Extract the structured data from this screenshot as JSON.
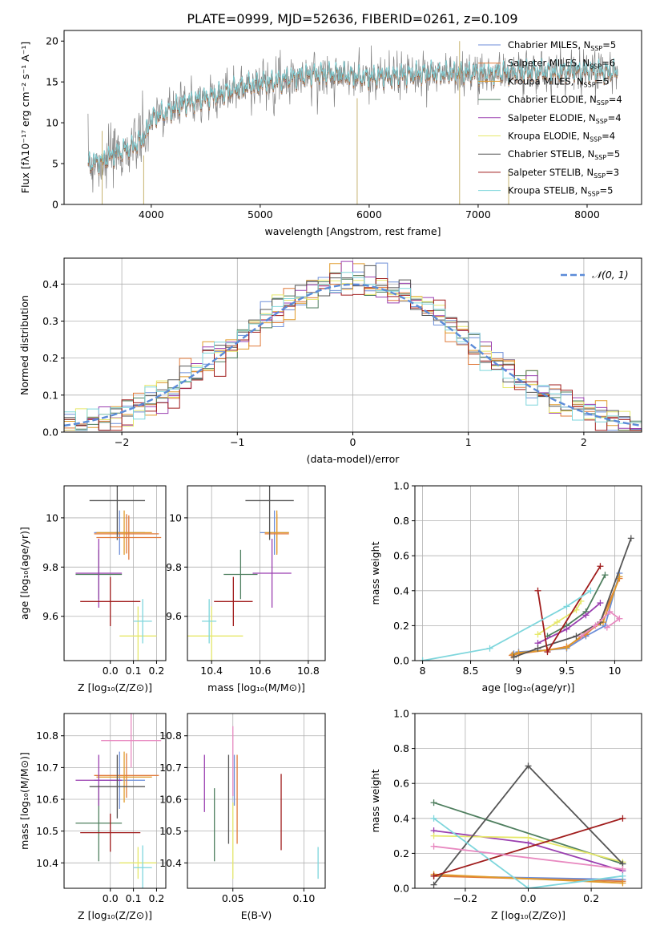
{
  "figure": {
    "title": "PLATE=0999, MJD=52636, FIBERID=0261, z=0.109"
  },
  "colors": {
    "Chabrier MILES": "#6c8ed8",
    "Salpeter MILES": "#e07a3a",
    "Kroupa MILES": "#e09a2a",
    "Chabrier ELODIE": "#4f7f5f",
    "Salpeter ELODIE": "#9a3fb0",
    "Kroupa ELODIE": "#e6e86a",
    "Chabrier STELIB": "#555555",
    "Salpeter STELIB": "#a01c1c",
    "Kroupa STELIB": "#7ed6dc",
    "gaussian": "#5b8bd8",
    "grid": "#b0b0b0"
  },
  "legend1": [
    {
      "name": "Chabrier MILES",
      "label": "Chabrier MILES, N",
      "sub": "SSP",
      "tail": "=5"
    },
    {
      "name": "Salpeter MILES",
      "label": "Salpeter MILES, N",
      "sub": "SSP",
      "tail": "=6"
    },
    {
      "name": "Kroupa MILES",
      "label": "Kroupa MILES, N",
      "sub": "SSP",
      "tail": "=5"
    },
    {
      "name": "Chabrier ELODIE",
      "label": "Chabrier ELODIE, N",
      "sub": "SSP",
      "tail": "=4"
    },
    {
      "name": "Salpeter ELODIE",
      "label": "Salpeter ELODIE, N",
      "sub": "SSP",
      "tail": "=4"
    },
    {
      "name": "Kroupa ELODIE",
      "label": "Kroupa ELODIE, N",
      "sub": "SSP",
      "tail": "=4"
    },
    {
      "name": "Chabrier STELIB",
      "label": "Chabrier STELIB, N",
      "sub": "SSP",
      "tail": "=5"
    },
    {
      "name": "Salpeter STELIB",
      "label": "Salpeter STELIB, N",
      "sub": "SSP",
      "tail": "=3"
    },
    {
      "name": "Kroupa STELIB",
      "label": "Kroupa STELIB, N",
      "sub": "SSP",
      "tail": "=5"
    }
  ],
  "legend2": "𝒩(0, 1)",
  "chart_data": [
    {
      "id": "spectrum",
      "type": "line",
      "title": "PLATE=0999, MJD=52636, FIBERID=0261, z=0.109",
      "xlabel": "wavelength [Angstrom, rest frame]",
      "ylabel": "Flux [fλ10⁻¹⁷ erg cm⁻² s⁻¹ A⁻¹]",
      "xlim": [
        3200,
        8500
      ],
      "ylim": [
        0,
        21.3
      ],
      "xticks": [
        4000,
        5000,
        6000,
        7000,
        8000
      ],
      "yticks": [
        0,
        5,
        10,
        15,
        20
      ],
      "continuum": {
        "x": [
          3420,
          3550,
          3700,
          3850,
          3950,
          4000,
          4150,
          4300,
          4500,
          4700,
          4900,
          5100,
          5300,
          5500,
          5700,
          5900,
          6100,
          6300,
          6500,
          6700,
          6900,
          7100,
          7300,
          7500,
          7700,
          7900,
          8100,
          8280
        ],
        "y": [
          5.0,
          5.3,
          6.3,
          7.2,
          8.4,
          10.5,
          11.3,
          12.3,
          13.0,
          13.8,
          14.6,
          15.0,
          15.5,
          15.9,
          16.0,
          15.5,
          15.6,
          15.8,
          16.0,
          16.0,
          16.1,
          16.0,
          16.1,
          16.2,
          16.2,
          16.3,
          16.3,
          16.1
        ]
      },
      "series": [
        "Chabrier MILES",
        "Salpeter MILES",
        "Kroupa MILES",
        "Chabrier ELODIE",
        "Salpeter ELODIE",
        "Kroupa ELODIE",
        "Chabrier STELIB",
        "Salpeter STELIB",
        "Kroupa STELIB"
      ],
      "grid": false,
      "legend": "top-right"
    },
    {
      "id": "residuals",
      "type": "histogram",
      "xlabel": "(data-model)/error",
      "ylabel": "Normed distribution",
      "xlim": [
        -2.5,
        2.5
      ],
      "ylim": [
        0,
        0.47
      ],
      "xticks": [
        -2,
        -1,
        0,
        1,
        2
      ],
      "yticks": [
        0.0,
        0.1,
        0.2,
        0.3,
        0.4
      ],
      "bin_width": 0.1,
      "gaussian": {
        "mean": 0,
        "sigma": 1,
        "label": "𝒩(0, 1)"
      },
      "series": [
        "Chabrier MILES",
        "Salpeter MILES",
        "Kroupa MILES",
        "Chabrier ELODIE",
        "Salpeter ELODIE",
        "Kroupa ELODIE",
        "Chabrier STELIB",
        "Salpeter STELIB",
        "Kroupa STELIB"
      ],
      "grid": true,
      "legend": "top-right"
    },
    {
      "id": "age_vs_Z",
      "type": "errorbar",
      "xlabel": "Z [log₁₀(Z/Z⊙)]",
      "ylabel": "age  [log₁₀(age/yr)]",
      "xlim": [
        -0.2,
        0.24
      ],
      "ylim": [
        9.42,
        10.13
      ],
      "xticks": [
        0.0,
        0.1,
        0.2
      ],
      "xticklabels": [
        "0.0",
        "0.1",
        "0.2"
      ],
      "yticks": [
        9.6,
        9.8,
        10.0
      ],
      "grid": true,
      "points": [
        {
          "series": "Chabrier MILES",
          "x": 0.04,
          "xerr": 0.11,
          "y": 9.94,
          "yerr": 0.09
        },
        {
          "series": "Salpeter MILES",
          "x": 0.07,
          "xerr": 0.14,
          "y": 9.935,
          "yerr": 0.08
        },
        {
          "series": "Kroupa MILES",
          "x": 0.06,
          "xerr": 0.12,
          "y": 9.94,
          "yerr": 0.09
        },
        {
          "series": "Chabrier ELODIE",
          "x": -0.05,
          "xerr": 0.1,
          "y": 9.77,
          "yerr": 0.1
        },
        {
          "series": "Salpeter ELODIE",
          "x": -0.05,
          "xerr": 0.1,
          "y": 9.775,
          "yerr": 0.14
        },
        {
          "series": "Kroupa ELODIE",
          "x": 0.12,
          "xerr": 0.08,
          "y": 9.52,
          "yerr": 0.12
        },
        {
          "series": "Chabrier STELIB",
          "x": 0.03,
          "xerr": 0.12,
          "y": 10.07,
          "yerr": 0.16
        },
        {
          "series": "Salpeter STELIB",
          "x": 0.0,
          "xerr": 0.13,
          "y": 9.66,
          "yerr": 0.1
        },
        {
          "series": "Kroupa STELIB",
          "x": 0.14,
          "xerr": 0.04,
          "y": 9.58,
          "yerr": 0.09
        },
        {
          "series": "Salpeter MILES",
          "x": 0.08,
          "xerr": 0.14,
          "y": 9.92,
          "yerr": 0.09
        }
      ]
    },
    {
      "id": "age_vs_mass",
      "type": "errorbar",
      "xlabel": "mass [log₁₀(M/M⊙)]",
      "ylabel": "",
      "xlim": [
        10.3,
        10.87
      ],
      "ylim": [
        9.42,
        10.13
      ],
      "xticks": [
        10.4,
        10.6,
        10.8
      ],
      "yticks": [
        9.6,
        9.8,
        10.0
      ],
      "grid": true,
      "points": [
        {
          "series": "Chabrier MILES",
          "x": 10.66,
          "xerr": 0.06,
          "y": 9.94,
          "yerr": 0.09
        },
        {
          "series": "Salpeter MILES",
          "x": 10.67,
          "xerr": 0.05,
          "y": 9.935,
          "yerr": 0.08
        },
        {
          "series": "Kroupa MILES",
          "x": 10.67,
          "xerr": 0.05,
          "y": 9.94,
          "yerr": 0.09
        },
        {
          "series": "Chabrier ELODIE",
          "x": 10.52,
          "xerr": 0.07,
          "y": 9.77,
          "yerr": 0.1
        },
        {
          "series": "Salpeter ELODIE",
          "x": 10.65,
          "xerr": 0.08,
          "y": 9.775,
          "yerr": 0.14
        },
        {
          "series": "Kroupa ELODIE",
          "x": 10.4,
          "xerr": 0.13,
          "y": 9.52,
          "yerr": 0.12
        },
        {
          "series": "Chabrier STELIB",
          "x": 10.64,
          "xerr": 0.1,
          "y": 10.07,
          "yerr": 0.16
        },
        {
          "series": "Salpeter STELIB",
          "x": 10.49,
          "xerr": 0.08,
          "y": 9.66,
          "yerr": 0.1
        },
        {
          "series": "Kroupa STELIB",
          "x": 10.39,
          "xerr": 0.03,
          "y": 9.58,
          "yerr": 0.09
        }
      ]
    },
    {
      "id": "mass_weight_vs_age",
      "type": "line",
      "xlabel": "age  [log₁₀(age/yr)]",
      "ylabel": "mass weight",
      "xlim": [
        7.92,
        10.28
      ],
      "ylim": [
        0,
        1.0
      ],
      "xticks": [
        8.0,
        8.5,
        9.0,
        9.5,
        10.0
      ],
      "yticks": [
        0.0,
        0.2,
        0.4,
        0.6,
        0.8,
        1.0
      ],
      "grid": true,
      "series": [
        {
          "name": "Chabrier MILES",
          "x": [
            8.95,
            9.0,
            9.3,
            9.5,
            9.7,
            9.9,
            10.05
          ],
          "y": [
            0.04,
            0.05,
            0.06,
            0.07,
            0.14,
            0.2,
            0.5
          ]
        },
        {
          "name": "Salpeter MILES",
          "x": [
            8.93,
            9.0,
            9.3,
            9.5,
            9.7,
            9.85,
            10.05
          ],
          "y": [
            0.03,
            0.04,
            0.06,
            0.08,
            0.15,
            0.22,
            0.47
          ]
        },
        {
          "name": "Kroupa MILES",
          "x": [
            8.94,
            9.0,
            9.3,
            9.5,
            9.7,
            9.88,
            10.05
          ],
          "y": [
            0.035,
            0.045,
            0.06,
            0.075,
            0.16,
            0.22,
            0.48
          ]
        },
        {
          "name": "Chabrier ELODIE",
          "x": [
            9.3,
            9.5,
            9.7,
            9.9
          ],
          "y": [
            0.14,
            0.2,
            0.28,
            0.49
          ]
        },
        {
          "name": "Salpeter ELODIE",
          "x": [
            9.2,
            9.5,
            9.7,
            9.85
          ],
          "y": [
            0.1,
            0.18,
            0.26,
            0.33
          ]
        },
        {
          "name": "Kroupa ELODIE",
          "x": [
            9.2,
            9.4,
            9.6,
            9.65
          ],
          "y": [
            0.15,
            0.22,
            0.29,
            0.34
          ]
        },
        {
          "name": "Chabrier STELIB",
          "x": [
            8.95,
            9.2,
            9.6,
            9.85,
            10.17
          ],
          "y": [
            0.02,
            0.07,
            0.14,
            0.22,
            0.7
          ]
        },
        {
          "name": "Salpeter STELIB",
          "x": [
            9.2,
            9.3,
            9.85
          ],
          "y": [
            0.4,
            0.05,
            0.54
          ]
        },
        {
          "name": "Kroupa STELIB",
          "x": [
            8.0,
            8.7,
            9.5,
            9.75
          ],
          "y": [
            0.0,
            0.07,
            0.31,
            0.4
          ]
        },
        {
          "name": "Pink",
          "x": [
            9.65,
            9.8,
            9.95,
            10.05,
            9.92
          ],
          "y": [
            0.14,
            0.2,
            0.28,
            0.24,
            0.19
          ]
        }
      ]
    },
    {
      "id": "mass_vs_Z",
      "type": "errorbar",
      "xlabel": "Z [log₁₀(Z/Z⊙)]",
      "ylabel": "mass [log₁₀(M/M⊙)]",
      "xlim": [
        -0.2,
        0.24
      ],
      "ylim": [
        10.32,
        10.87
      ],
      "xticks": [
        0.0,
        0.1,
        0.2
      ],
      "xticklabels": [
        "0.0",
        "0.1",
        "0.2"
      ],
      "yticks": [
        10.4,
        10.5,
        10.6,
        10.7,
        10.8
      ],
      "grid": true,
      "points": [
        {
          "series": "Chabrier MILES",
          "x": 0.04,
          "xerr": 0.11,
          "y": 10.66,
          "yerr": 0.09
        },
        {
          "series": "Salpeter MILES",
          "x": 0.07,
          "xerr": 0.14,
          "y": 10.675,
          "yerr": 0.07
        },
        {
          "series": "Kroupa MILES",
          "x": 0.06,
          "xerr": 0.12,
          "y": 10.67,
          "yerr": 0.08
        },
        {
          "series": "Chabrier ELODIE",
          "x": -0.05,
          "xerr": 0.1,
          "y": 10.525,
          "yerr": 0.12
        },
        {
          "series": "Salpeter ELODIE",
          "x": -0.05,
          "xerr": 0.1,
          "y": 10.66,
          "yerr": 0.08
        },
        {
          "series": "Kroupa ELODIE",
          "x": 0.12,
          "xerr": 0.08,
          "y": 10.4,
          "yerr": 0.05
        },
        {
          "series": "Chabrier STELIB",
          "x": 0.03,
          "xerr": 0.12,
          "y": 10.64,
          "yerr": 0.1
        },
        {
          "series": "Salpeter STELIB",
          "x": 0.0,
          "xerr": 0.13,
          "y": 10.495,
          "yerr": 0.06
        },
        {
          "series": "Kroupa STELIB",
          "x": 0.14,
          "xerr": 0.04,
          "y": 10.385,
          "yerr": 0.07
        },
        {
          "series": "Pink",
          "x": 0.09,
          "xerr": 0.13,
          "y": 10.785,
          "yerr": 0.085
        }
      ]
    },
    {
      "id": "ebv",
      "type": "errorbar",
      "xlabel": "E(B-V)",
      "ylabel": "",
      "xlim": [
        0.018,
        0.115
      ],
      "ylim": [
        10.32,
        10.87
      ],
      "xticks": [
        0.05,
        0.1
      ],
      "xticklabels": [
        "0.05",
        "0.10"
      ],
      "yticks": [
        10.4,
        10.5,
        10.6,
        10.7,
        10.8
      ],
      "grid": true,
      "points": [
        {
          "series": "Salpeter ELODIE",
          "x": 0.03,
          "y": 10.65,
          "yerr": 0.09
        },
        {
          "series": "Chabrier ELODIE",
          "x": 0.037,
          "y": 10.52,
          "yerr": 0.115
        },
        {
          "series": "Chabrier STELIB",
          "x": 0.047,
          "y": 10.6,
          "yerr": 0.14
        },
        {
          "series": "Kroupa ELODIE",
          "x": 0.05,
          "y": 10.47,
          "yerr": 0.12
        },
        {
          "series": "Pink",
          "x": 0.05,
          "y": 10.72,
          "yerr": 0.11
        },
        {
          "series": "Chabrier MILES",
          "x": 0.051,
          "y": 10.66,
          "yerr": 0.08
        },
        {
          "series": "Salpeter MILES",
          "x": 0.053,
          "y": 10.6,
          "yerr": 0.14
        },
        {
          "series": "Salpeter STELIB",
          "x": 0.084,
          "y": 10.56,
          "yerr": 0.12
        },
        {
          "series": "Kroupa STELIB",
          "x": 0.11,
          "y": 10.4,
          "yerr": 0.05
        }
      ]
    },
    {
      "id": "mass_weight_vs_Z",
      "type": "line",
      "xlabel": "Z [log₁₀(Z/Z⊙)]",
      "ylabel": "mass weight",
      "xlim": [
        -0.36,
        0.36
      ],
      "ylim": [
        0,
        1.0
      ],
      "xticks": [
        -0.2,
        0.0,
        0.2
      ],
      "xticklabels": [
        "−0.2",
        "0.0",
        "0.2"
      ],
      "yticks": [
        0.0,
        0.2,
        0.4,
        0.6,
        0.8,
        1.0
      ],
      "grid": true,
      "series": [
        {
          "name": "Chabrier MILES",
          "x": [
            -0.3,
            0.3
          ],
          "y": [
            0.07,
            0.05
          ]
        },
        {
          "name": "Salpeter MILES",
          "x": [
            -0.3,
            0.3
          ],
          "y": [
            0.07,
            0.04
          ]
        },
        {
          "name": "Kroupa MILES",
          "x": [
            -0.3,
            0.3
          ],
          "y": [
            0.08,
            0.03
          ]
        },
        {
          "name": "Chabrier ELODIE",
          "x": [
            -0.3,
            0.3
          ],
          "y": [
            0.49,
            0.14
          ]
        },
        {
          "name": "Salpeter ELODIE",
          "x": [
            -0.3,
            0.0,
            0.3
          ],
          "y": [
            0.33,
            0.26,
            0.1
          ]
        },
        {
          "name": "Kroupa ELODIE",
          "x": [
            -0.3,
            0.0,
            0.3
          ],
          "y": [
            0.3,
            0.29,
            0.15
          ]
        },
        {
          "name": "Chabrier STELIB",
          "x": [
            -0.3,
            0.0,
            0.3
          ],
          "y": [
            0.02,
            0.7,
            0.14
          ]
        },
        {
          "name": "Salpeter STELIB",
          "x": [
            -0.3,
            0.3
          ],
          "y": [
            0.07,
            0.4
          ]
        },
        {
          "name": "Kroupa STELIB",
          "x": [
            -0.3,
            0.0,
            0.3
          ],
          "y": [
            0.4,
            0.0,
            0.07
          ]
        },
        {
          "name": "Pink",
          "x": [
            -0.3,
            0.3
          ],
          "y": [
            0.24,
            0.11
          ]
        }
      ]
    }
  ]
}
